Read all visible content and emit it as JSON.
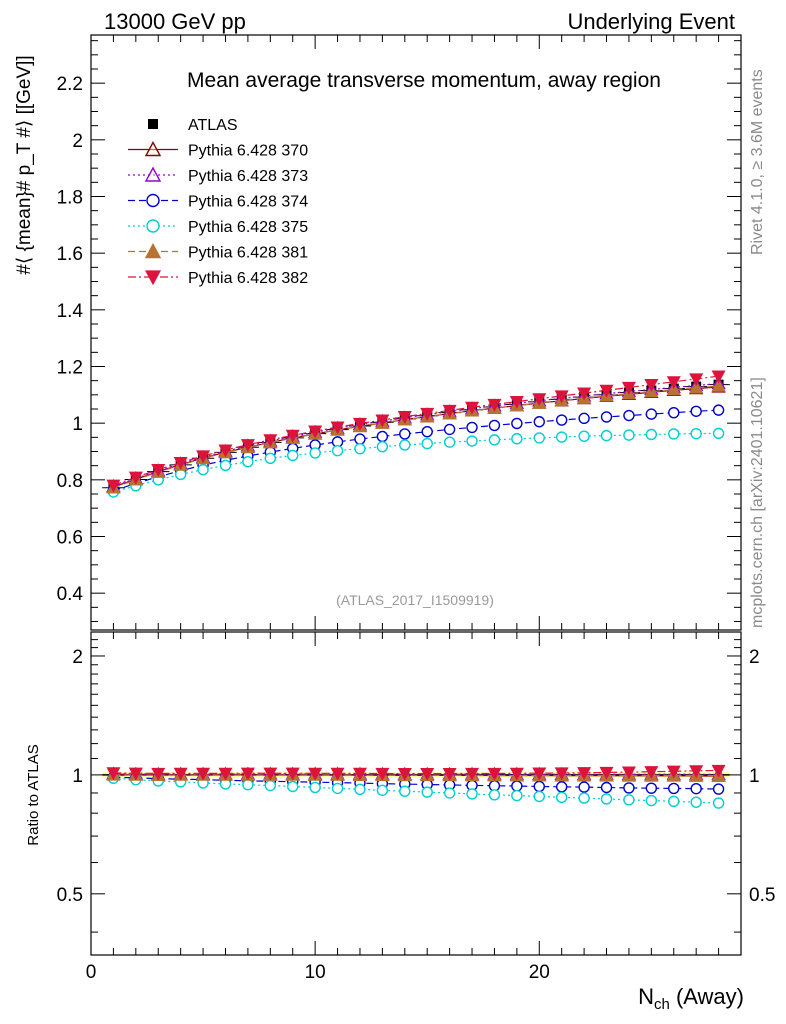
{
  "header": {
    "left": "13000 GeV pp",
    "right": "Underlying Event"
  },
  "side_labels": {
    "rivet": "Rivet 4.1.0, ≥ 3.6M events",
    "mcplots": "mcplots.cern.ch [arXiv:2401.10621]"
  },
  "chart_data": {
    "type": "scatter",
    "title": "Mean average transverse momentum, away region",
    "watermark": "(ATLAS_2017_I1509919)",
    "xlabel_main": "N",
    "xlabel_sub": "ch",
    "xlabel_suffix": " (Away)",
    "ylabel": "#⟨ {mean}# p_T #⟩ [[GeV]]",
    "ratio_ylabel": "Ratio to ATLAS",
    "xlim": [
      0,
      29
    ],
    "ylim": [
      0.27,
      2.37
    ],
    "ratio_ylim": [
      0.35,
      2.3
    ],
    "x": [
      1,
      2,
      3,
      4,
      5,
      6,
      7,
      8,
      9,
      10,
      11,
      12,
      13,
      14,
      15,
      16,
      17,
      18,
      19,
      20,
      21,
      22,
      23,
      24,
      25,
      26,
      27,
      28
    ],
    "x_ticks": [
      0,
      10,
      20
    ],
    "y_ticks": [
      "0.4",
      "0.6",
      "0.8",
      "1",
      "1.2",
      "1.4",
      "1.6",
      "1.8",
      "2",
      "2.2"
    ],
    "ratio_ticks": [
      "0.5",
      "1",
      "2"
    ],
    "legend_position": "top-left",
    "series": [
      {
        "name": "ATLAS",
        "color": "#000000",
        "marker": "square-filled",
        "dash": "none",
        "values": [
          0.772,
          0.801,
          0.829,
          0.853,
          0.876,
          0.897,
          0.915,
          0.932,
          0.948,
          0.963,
          0.977,
          0.99,
          1.003,
          1.015,
          1.026,
          1.037,
          1.047,
          1.057,
          1.066,
          1.075,
          1.084,
          1.092,
          1.1,
          1.108,
          1.115,
          1.122,
          1.129,
          1.136
        ]
      },
      {
        "name": "Pythia 6.428 370",
        "color": "#8b0000",
        "marker": "triangle-up-open",
        "dash": "solid",
        "values": [
          0.775,
          0.802,
          0.829,
          0.854,
          0.877,
          0.897,
          0.915,
          0.932,
          0.948,
          0.962,
          0.976,
          0.989,
          1.001,
          1.012,
          1.023,
          1.034,
          1.044,
          1.053,
          1.062,
          1.071,
          1.079,
          1.087,
          1.095,
          1.102,
          1.109,
          1.116,
          1.122,
          1.128
        ]
      },
      {
        "name": "Pythia 6.428 373",
        "color": "#9400d3",
        "marker": "triangle-up-open",
        "dash": "dotted",
        "values": [
          0.777,
          0.805,
          0.832,
          0.857,
          0.88,
          0.901,
          0.92,
          0.937,
          0.953,
          0.968,
          0.982,
          0.995,
          1.007,
          1.019,
          1.03,
          1.041,
          1.051,
          1.061,
          1.07,
          1.079,
          1.088,
          1.096,
          1.104,
          1.112,
          1.119,
          1.126,
          1.133,
          1.14
        ]
      },
      {
        "name": "Pythia 6.428 374",
        "color": "#0000cd",
        "marker": "circle-open",
        "dash": "dashed",
        "values": [
          0.762,
          0.787,
          0.811,
          0.832,
          0.852,
          0.869,
          0.884,
          0.898,
          0.911,
          0.923,
          0.934,
          0.944,
          0.953,
          0.962,
          0.97,
          0.978,
          0.985,
          0.992,
          0.999,
          1.005,
          1.011,
          1.017,
          1.022,
          1.027,
          1.032,
          1.037,
          1.042,
          1.046
        ]
      },
      {
        "name": "Pythia 6.428 375",
        "color": "#00ced1",
        "marker": "circle-open",
        "dash": "dotted",
        "values": [
          0.757,
          0.779,
          0.8,
          0.819,
          0.836,
          0.851,
          0.864,
          0.876,
          0.886,
          0.895,
          0.903,
          0.91,
          0.917,
          0.923,
          0.928,
          0.933,
          0.937,
          0.941,
          0.945,
          0.948,
          0.951,
          0.954,
          0.956,
          0.958,
          0.96,
          0.962,
          0.963,
          0.964
        ]
      },
      {
        "name": "Pythia 6.428 381",
        "color": "#b87333",
        "marker": "triangle-up-filled",
        "dash": "dashed",
        "values": [
          0.772,
          0.8,
          0.827,
          0.852,
          0.875,
          0.896,
          0.914,
          0.931,
          0.947,
          0.962,
          0.976,
          0.988,
          1.0,
          1.012,
          1.023,
          1.034,
          1.044,
          1.053,
          1.062,
          1.071,
          1.08,
          1.088,
          1.096,
          1.104,
          1.111,
          1.118,
          1.125,
          1.131
        ]
      },
      {
        "name": "Pythia 6.428 382",
        "color": "#dc143c",
        "marker": "triangle-down-filled",
        "dash": "dashdot",
        "values": [
          0.781,
          0.809,
          0.836,
          0.861,
          0.884,
          0.905,
          0.924,
          0.941,
          0.957,
          0.972,
          0.986,
          0.999,
          1.011,
          1.023,
          1.034,
          1.045,
          1.056,
          1.066,
          1.076,
          1.086,
          1.096,
          1.106,
          1.116,
          1.126,
          1.136,
          1.146,
          1.156,
          1.166
        ]
      }
    ]
  }
}
